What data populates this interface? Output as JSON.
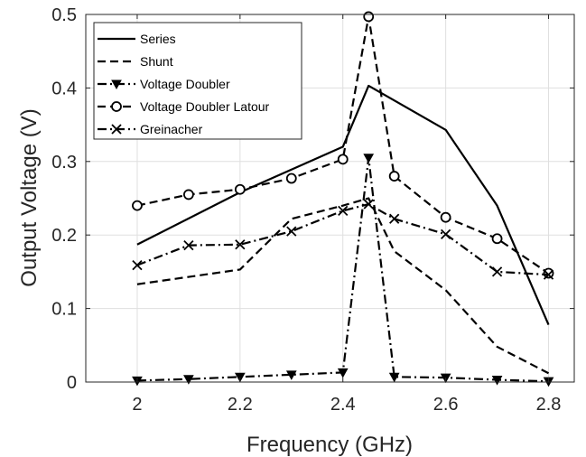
{
  "chart_data": {
    "type": "line",
    "xlabel": "Frequency (GHz)",
    "ylabel": "Output Voltage (V)",
    "xlim": [
      1.9,
      2.85
    ],
    "ylim": [
      0,
      0.5
    ],
    "xticks": [
      "2",
      "2.2",
      "2.4",
      "2.6",
      "2.8"
    ],
    "yticks": [
      "0",
      "0.1",
      "0.2",
      "0.3",
      "0.4",
      "0.5"
    ],
    "grid": true,
    "legend_position": "top-left",
    "series": [
      {
        "name": "Series",
        "style": "solid",
        "marker": "none",
        "color": "#000000",
        "x": [
          2.0,
          2.2,
          2.4,
          2.45,
          2.6,
          2.7,
          2.8
        ],
        "y": [
          0.187,
          0.258,
          0.32,
          0.403,
          0.343,
          0.24,
          0.078
        ]
      },
      {
        "name": "Shunt",
        "style": "dashed",
        "marker": "none",
        "color": "#000000",
        "x": [
          2.0,
          2.2,
          2.3,
          2.4,
          2.45,
          2.5,
          2.6,
          2.7,
          2.8
        ],
        "y": [
          0.133,
          0.153,
          0.222,
          0.24,
          0.25,
          0.178,
          0.125,
          0.048,
          0.012
        ]
      },
      {
        "name": "Voltage Doubler",
        "style": "dashdot",
        "marker": "triangle",
        "color": "#000000",
        "x": [
          2.0,
          2.1,
          2.2,
          2.3,
          2.4,
          2.45,
          2.5,
          2.6,
          2.7,
          2.8
        ],
        "y": [
          0.002,
          0.004,
          0.007,
          0.01,
          0.013,
          0.305,
          0.007,
          0.006,
          0.003,
          0.001
        ]
      },
      {
        "name": "Voltage Doubler Latour",
        "style": "dashed",
        "marker": "circle",
        "color": "#000000",
        "x": [
          2.0,
          2.1,
          2.2,
          2.3,
          2.4,
          2.45,
          2.5,
          2.6,
          2.7,
          2.8
        ],
        "y": [
          0.24,
          0.255,
          0.262,
          0.277,
          0.303,
          0.497,
          0.28,
          0.224,
          0.195,
          0.148
        ]
      },
      {
        "name": "Greinacher",
        "style": "dashdot",
        "marker": "x",
        "color": "#000000",
        "x": [
          2.0,
          2.1,
          2.2,
          2.3,
          2.4,
          2.45,
          2.5,
          2.6,
          2.7,
          2.8
        ],
        "y": [
          0.159,
          0.186,
          0.187,
          0.205,
          0.233,
          0.242,
          0.222,
          0.201,
          0.15,
          0.146
        ]
      }
    ]
  }
}
